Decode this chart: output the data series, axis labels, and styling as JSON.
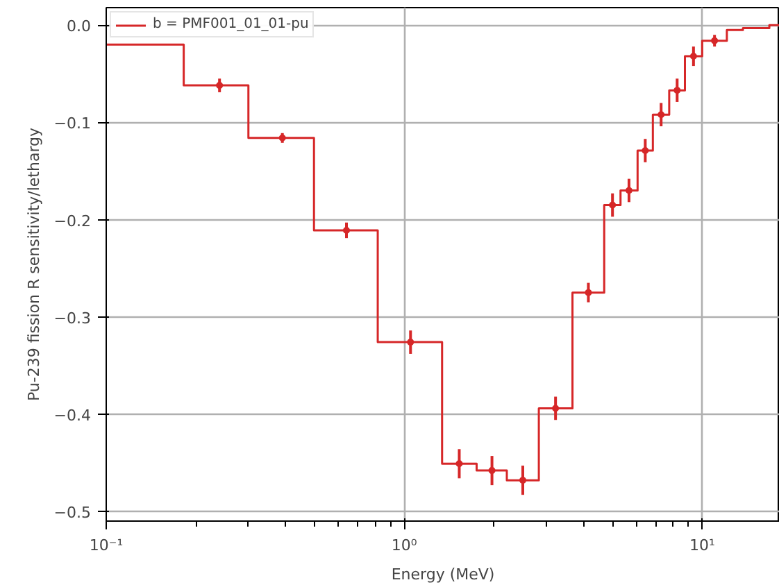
{
  "chart_data": {
    "type": "step",
    "xlabel": "Energy (MeV)",
    "ylabel": "Pu-239 fission R sensitivity/lethargy",
    "log": "x",
    "xlim": [
      0.1,
      18.2
    ],
    "ylim": [
      -0.51,
      0.018
    ],
    "xticks": [
      {
        "value": 0.1,
        "label": "10⁻¹"
      },
      {
        "value": 1,
        "label": "10⁰"
      },
      {
        "value": 10,
        "label": "10¹"
      }
    ],
    "yticks": [
      {
        "value": 0.0,
        "label": "0.0"
      },
      {
        "value": -0.1,
        "label": "−0.1"
      },
      {
        "value": -0.2,
        "label": "−0.2"
      },
      {
        "value": -0.3,
        "label": "−0.3"
      },
      {
        "value": -0.4,
        "label": "−0.4"
      },
      {
        "value": -0.5,
        "label": "−0.5"
      }
    ],
    "grid": true,
    "legend": "top left",
    "series": [
      {
        "name": "b = PMF001_01_01-pu",
        "color": "#d62728",
        "x": [
          0.1,
          0.182,
          0.3,
          0.498,
          0.815,
          1.34,
          1.75,
          2.21,
          2.83,
          3.67,
          4.69,
          5.32,
          6.07,
          6.83,
          7.75,
          8.75,
          10.0,
          12.1,
          13.7,
          16.8,
          18.2
        ],
        "values": [
          -0.02,
          -0.062,
          -0.116,
          -0.211,
          -0.326,
          -0.451,
          -0.458,
          -0.468,
          -0.394,
          -0.275,
          -0.185,
          -0.17,
          -0.129,
          -0.092,
          -0.067,
          -0.032,
          -0.016,
          -0.005,
          -0.003,
          0.0,
          0.0
        ]
      },
      {
        "type": "scatter",
        "marker": "circle",
        "color": "#d62728",
        "x": [
          0.24,
          0.39,
          0.64,
          1.05,
          1.53,
          1.97,
          2.5,
          3.22,
          4.15,
          5.0,
          5.68,
          6.44,
          7.28,
          8.24,
          9.35,
          11.0
        ],
        "values": [
          -0.062,
          -0.116,
          -0.211,
          -0.326,
          -0.451,
          -0.458,
          -0.468,
          -0.394,
          -0.275,
          -0.185,
          -0.17,
          -0.129,
          -0.092,
          -0.067,
          -0.032,
          -0.016
        ],
        "errors": [
          0.007,
          0.005,
          0.008,
          0.012,
          0.015,
          0.015,
          0.015,
          0.012,
          0.01,
          0.012,
          0.012,
          0.012,
          0.012,
          0.012,
          0.01,
          0.006
        ]
      }
    ]
  }
}
